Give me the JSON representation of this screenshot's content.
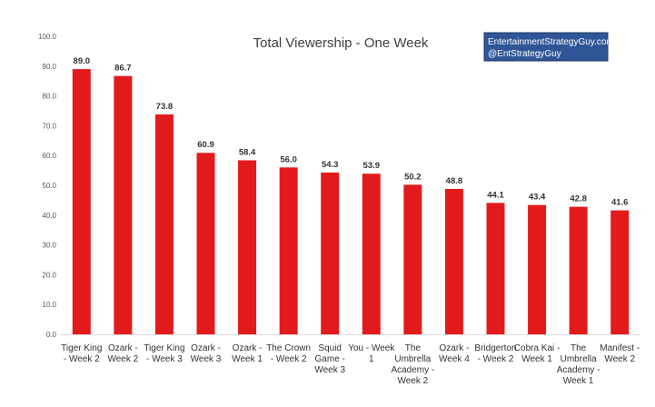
{
  "watermark": {
    "line1": "EntertainmentStrategyGuy.com",
    "line2": "@EntStrategyGuy",
    "bg_color": "#2F5597",
    "border_color": "#1F3864"
  },
  "chart_data": {
    "type": "bar",
    "title": "Total Viewership - One Week",
    "xlabel": "",
    "ylabel": "",
    "ylim": [
      0,
      100
    ],
    "yticks": [
      "0.0",
      "10.0",
      "20.0",
      "30.0",
      "40.0",
      "50.0",
      "60.0",
      "70.0",
      "80.0",
      "90.0",
      "100.0"
    ],
    "grid": false,
    "bar_color": "#E31A1C",
    "categories": [
      [
        "Tiger King",
        "- Week 2"
      ],
      [
        "Ozark -",
        "Week 2"
      ],
      [
        "Tiger King",
        "- Week 3"
      ],
      [
        "Ozark -",
        "Week 3"
      ],
      [
        "Ozark -",
        "Week 1"
      ],
      [
        "The Crown",
        "- Week 2"
      ],
      [
        "Squid",
        "Game -",
        "Week 3"
      ],
      [
        "You - Week",
        "1"
      ],
      [
        "The",
        "Umbrella",
        "Academy -",
        "Week 2"
      ],
      [
        "Ozark -",
        "Week 4"
      ],
      [
        "Bridgerton",
        "- Week 2"
      ],
      [
        "Cobra Kai -",
        "Week 1"
      ],
      [
        "The",
        "Umbrella",
        "Academy -",
        "Week 1"
      ],
      [
        "Manifest -",
        "Week 2"
      ]
    ],
    "values": [
      89.0,
      86.7,
      73.8,
      60.9,
      58.4,
      56.0,
      54.3,
      53.9,
      50.2,
      48.8,
      44.1,
      43.4,
      42.8,
      41.6
    ],
    "value_labels": [
      "89.0",
      "86.7",
      "73.8",
      "60.9",
      "58.4",
      "56.0",
      "54.3",
      "53.9",
      "50.2",
      "48.8",
      "44.1",
      "43.4",
      "42.8",
      "41.6"
    ]
  }
}
